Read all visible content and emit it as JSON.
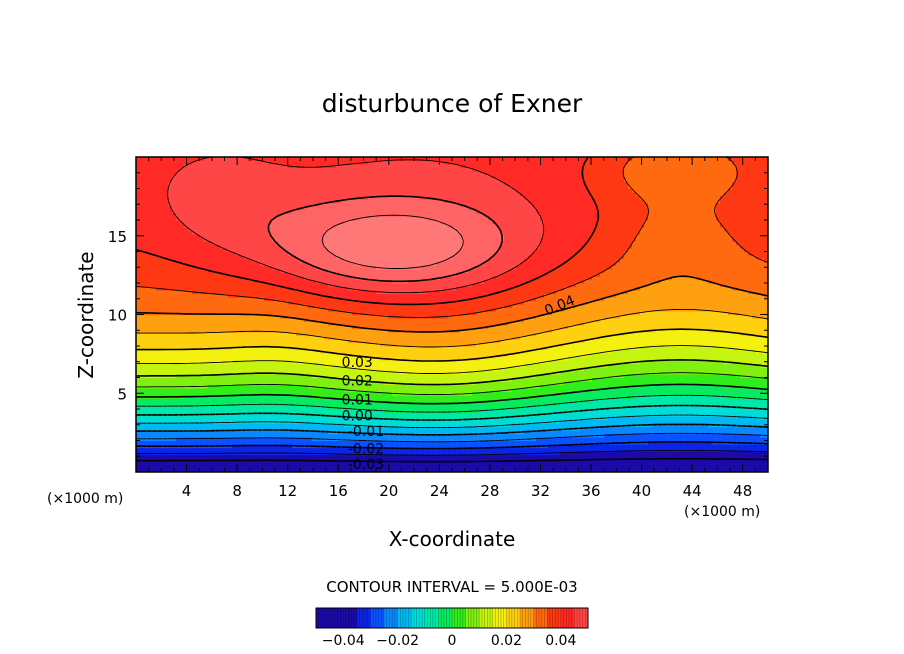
{
  "chart_data": {
    "type": "contour",
    "title": "disturbunce of Exner",
    "xlabel": "X-coordinate",
    "ylabel": "Z-coordinate",
    "x_unit": "(×1000 m)",
    "z_unit": "(×1000 m)",
    "xlim": [
      0,
      50
    ],
    "ylim": [
      0,
      20
    ],
    "xticks": [
      4,
      8,
      12,
      16,
      20,
      24,
      28,
      32,
      36,
      40,
      44,
      48
    ],
    "yticks": [
      5,
      10,
      15
    ],
    "contour_interval_text": "CONTOUR INTERVAL = 5.000E-03",
    "contour_labels": [
      {
        "text": "0.04",
        "x": 33.5,
        "z": 10.6
      },
      {
        "text": "0.03",
        "x": 17.5,
        "z": 7.0
      },
      {
        "text": "0.02",
        "x": 17.5,
        "z": 5.8
      },
      {
        "text": "0.01",
        "x": 17.5,
        "z": 4.6
      },
      {
        "text": "0.00",
        "x": 17.5,
        "z": 3.6
      },
      {
        "text": "-0.01",
        "x": 18.2,
        "z": 2.6
      },
      {
        "text": "-0.02",
        "x": 18.2,
        "z": 1.5
      },
      {
        "text": "-0.03",
        "x": 18.2,
        "z": 0.5
      }
    ],
    "colorbar": {
      "min": -0.05,
      "max": 0.05,
      "tick_values": [
        -0.04,
        -0.02,
        0,
        0.02,
        0.04
      ],
      "ticks": [
        "−0.04",
        "−0.02",
        "0",
        "0.02",
        "0.04"
      ]
    },
    "field_bands": [
      {
        "level": -0.04,
        "color": "#1c0aa8"
      },
      {
        "level": -0.035,
        "color": "#0a24e8"
      },
      {
        "level": -0.03,
        "color": "#0a52ff"
      },
      {
        "level": -0.025,
        "color": "#0a88ff"
      },
      {
        "level": -0.02,
        "color": "#00b8f2"
      },
      {
        "level": -0.015,
        "color": "#00dcd8"
      },
      {
        "level": -0.01,
        "color": "#00e8a8"
      },
      {
        "level": -0.005,
        "color": "#08ea60"
      },
      {
        "level": 0.0,
        "color": "#30ee1c"
      },
      {
        "level": 0.005,
        "color": "#80f010"
      },
      {
        "level": 0.01,
        "color": "#c4f410"
      },
      {
        "level": 0.015,
        "color": "#f4f010"
      },
      {
        "level": 0.02,
        "color": "#ffd010"
      },
      {
        "level": 0.025,
        "color": "#ffa010"
      },
      {
        "level": 0.03,
        "color": "#ff6a10"
      },
      {
        "level": 0.035,
        "color": "#ff3814"
      },
      {
        "level": 0.04,
        "color": "#ff2a26"
      },
      {
        "level": 0.045,
        "color": "#ff4646"
      },
      {
        "level": 0.05,
        "color": "#ff6464"
      },
      {
        "level": 0.055,
        "color": "#ff7878"
      },
      {
        "level": 0.06,
        "color": "#ff8c8c"
      }
    ]
  }
}
